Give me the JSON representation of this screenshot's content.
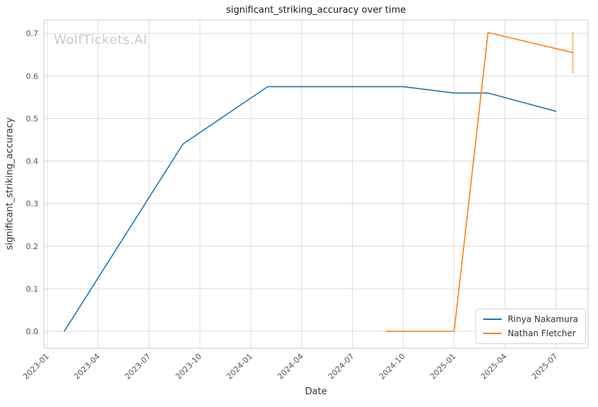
{
  "chart_data": {
    "type": "line",
    "title": "significant_striking_accuracy over time",
    "watermark": "WolfTickets.AI",
    "xlabel": "Date",
    "ylabel": "significant_striking_accuracy",
    "grid": true,
    "legend_position": "lower right",
    "x_ticks": [
      "2023-01",
      "2023-04",
      "2023-07",
      "2023-10",
      "2024-01",
      "2024-04",
      "2024-07",
      "2024-10",
      "2025-01",
      "2025-04",
      "2025-07"
    ],
    "y_ticks": [
      "0.0",
      "0.1",
      "0.2",
      "0.3",
      "0.4",
      "0.5",
      "0.6",
      "0.7"
    ],
    "x_range_months": [
      -0.2,
      31.9
    ],
    "y_range": [
      -0.04,
      0.732
    ],
    "series": [
      {
        "name": "Rinya Nakamura",
        "color": "#1f77b4",
        "points": [
          [
            "2023-02",
            0.0
          ],
          [
            "2023-09",
            0.44
          ],
          [
            "2024-02",
            0.575
          ],
          [
            "2024-10",
            0.575
          ],
          [
            "2025-01",
            0.56
          ],
          [
            "2025-03",
            0.56
          ],
          [
            "2025-07",
            0.517
          ]
        ]
      },
      {
        "name": "Nathan Fletcher",
        "color": "#ff7f0e",
        "points": [
          [
            "2024-09",
            0.0
          ],
          [
            "2025-01",
            0.0
          ],
          [
            "2025-03",
            0.702
          ],
          [
            "2025-08",
            0.655
          ]
        ],
        "error_bar": {
          "date": "2025-08",
          "low": 0.606,
          "high": 0.703
        }
      }
    ]
  }
}
